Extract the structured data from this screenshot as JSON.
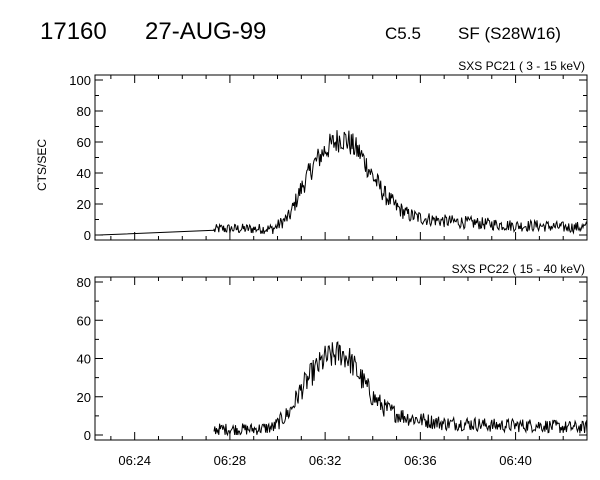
{
  "header": {
    "event_id": "17160",
    "date": "27-AUG-99",
    "goes_class": "C5.5",
    "flare_info": "SF (S28W16)"
  },
  "chart_data": [
    {
      "type": "line",
      "title": "SXS PC21  (  3 - 15 keV)",
      "ylabel": "CTS/SEC",
      "xlabel": "",
      "ylim": [
        0,
        100
      ],
      "yticks": [
        "0",
        "20",
        "40",
        "60",
        "80",
        "100"
      ],
      "xlim": [
        "06:22:20",
        "06:43:00"
      ],
      "xticks": [
        "06:24",
        "06:28",
        "06:32",
        "06:36",
        "06:40"
      ],
      "grid": false,
      "series": [
        {
          "values_note_free": true,
          "x": [
            "06:22:30",
            "06:27:20",
            "06:27:30",
            "06:29:00",
            "06:29:50",
            "06:30:30",
            "06:31:00",
            "06:31:30",
            "06:32:00",
            "06:32:40",
            "06:33:00",
            "06:33:30",
            "06:34:00",
            "06:34:30",
            "06:35:00",
            "06:35:30",
            "06:36:00",
            "06:37:00",
            "06:38:00",
            "06:39:00",
            "06:40:00",
            "06:41:00",
            "06:42:00",
            "06:43:00"
          ],
          "y": [
            0,
            3,
            4,
            4,
            4,
            12,
            30,
            45,
            55,
            63,
            60,
            52,
            38,
            26,
            18,
            13,
            11,
            9,
            8,
            7,
            6,
            6,
            5,
            5
          ]
        }
      ]
    },
    {
      "type": "line",
      "title": "SXS PC22  ( 15 - 40 keV)",
      "ylabel": "",
      "xlabel": "",
      "ylim": [
        0,
        80
      ],
      "yticks": [
        "0",
        "20",
        "40",
        "60",
        "80"
      ],
      "xlim": [
        "06:22:20",
        "06:43:00"
      ],
      "xticks": [
        "06:24",
        "06:28",
        "06:32",
        "06:36",
        "06:40"
      ],
      "grid": false,
      "series": [
        {
          "x": [
            "06:27:20",
            "06:29:00",
            "06:29:50",
            "06:30:30",
            "06:31:00",
            "06:31:30",
            "06:32:00",
            "06:32:40",
            "06:33:00",
            "06:33:30",
            "06:34:00",
            "06:34:30",
            "06:35:00",
            "06:35:30",
            "06:36:00",
            "06:37:00",
            "06:38:00",
            "06:39:00",
            "06:40:00",
            "06:41:00",
            "06:42:00",
            "06:43:00"
          ],
          "y": [
            3,
            3,
            4,
            12,
            24,
            33,
            40,
            43,
            40,
            30,
            20,
            14,
            11,
            9,
            8,
            6,
            6,
            5,
            5,
            5,
            4,
            4
          ]
        }
      ]
    }
  ]
}
